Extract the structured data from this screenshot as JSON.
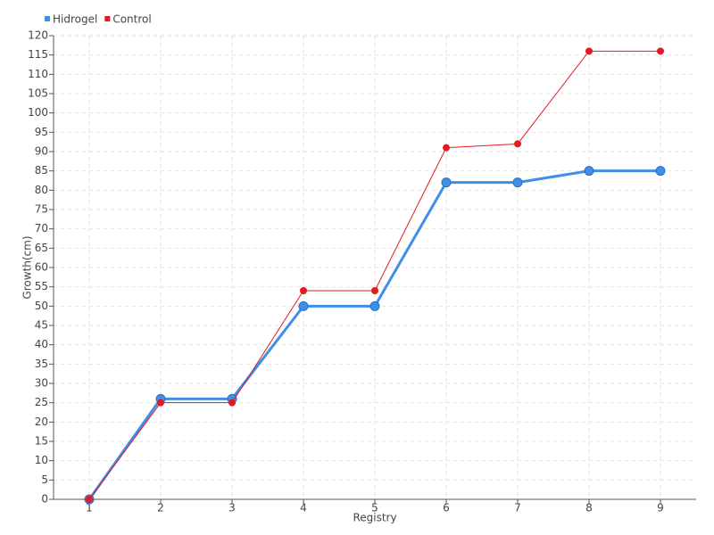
{
  "chart_data": {
    "type": "line",
    "x": [
      1,
      2,
      3,
      4,
      5,
      6,
      7,
      8,
      9
    ],
    "xlim": [
      0.5,
      9.5
    ],
    "xticks": [
      1,
      2,
      3,
      4,
      5,
      6,
      7,
      8,
      9
    ],
    "ylim": [
      0,
      120
    ],
    "yticks": [
      0,
      5,
      10,
      15,
      20,
      25,
      30,
      35,
      40,
      45,
      50,
      55,
      60,
      65,
      70,
      75,
      80,
      85,
      90,
      95,
      100,
      105,
      110,
      115,
      120
    ],
    "x_label": "Registry",
    "y_label": "Growth(cm)",
    "grid": true,
    "legend": "top-left",
    "series": [
      {
        "name": "Hidrogel",
        "color": "#3d8fe8",
        "values": [
          0,
          26,
          26,
          50,
          50,
          82,
          82,
          85,
          85
        ]
      },
      {
        "name": "Control",
        "color": "#e01b24",
        "values": [
          0,
          25,
          25,
          54,
          54,
          91,
          92,
          116,
          116
        ]
      }
    ]
  }
}
